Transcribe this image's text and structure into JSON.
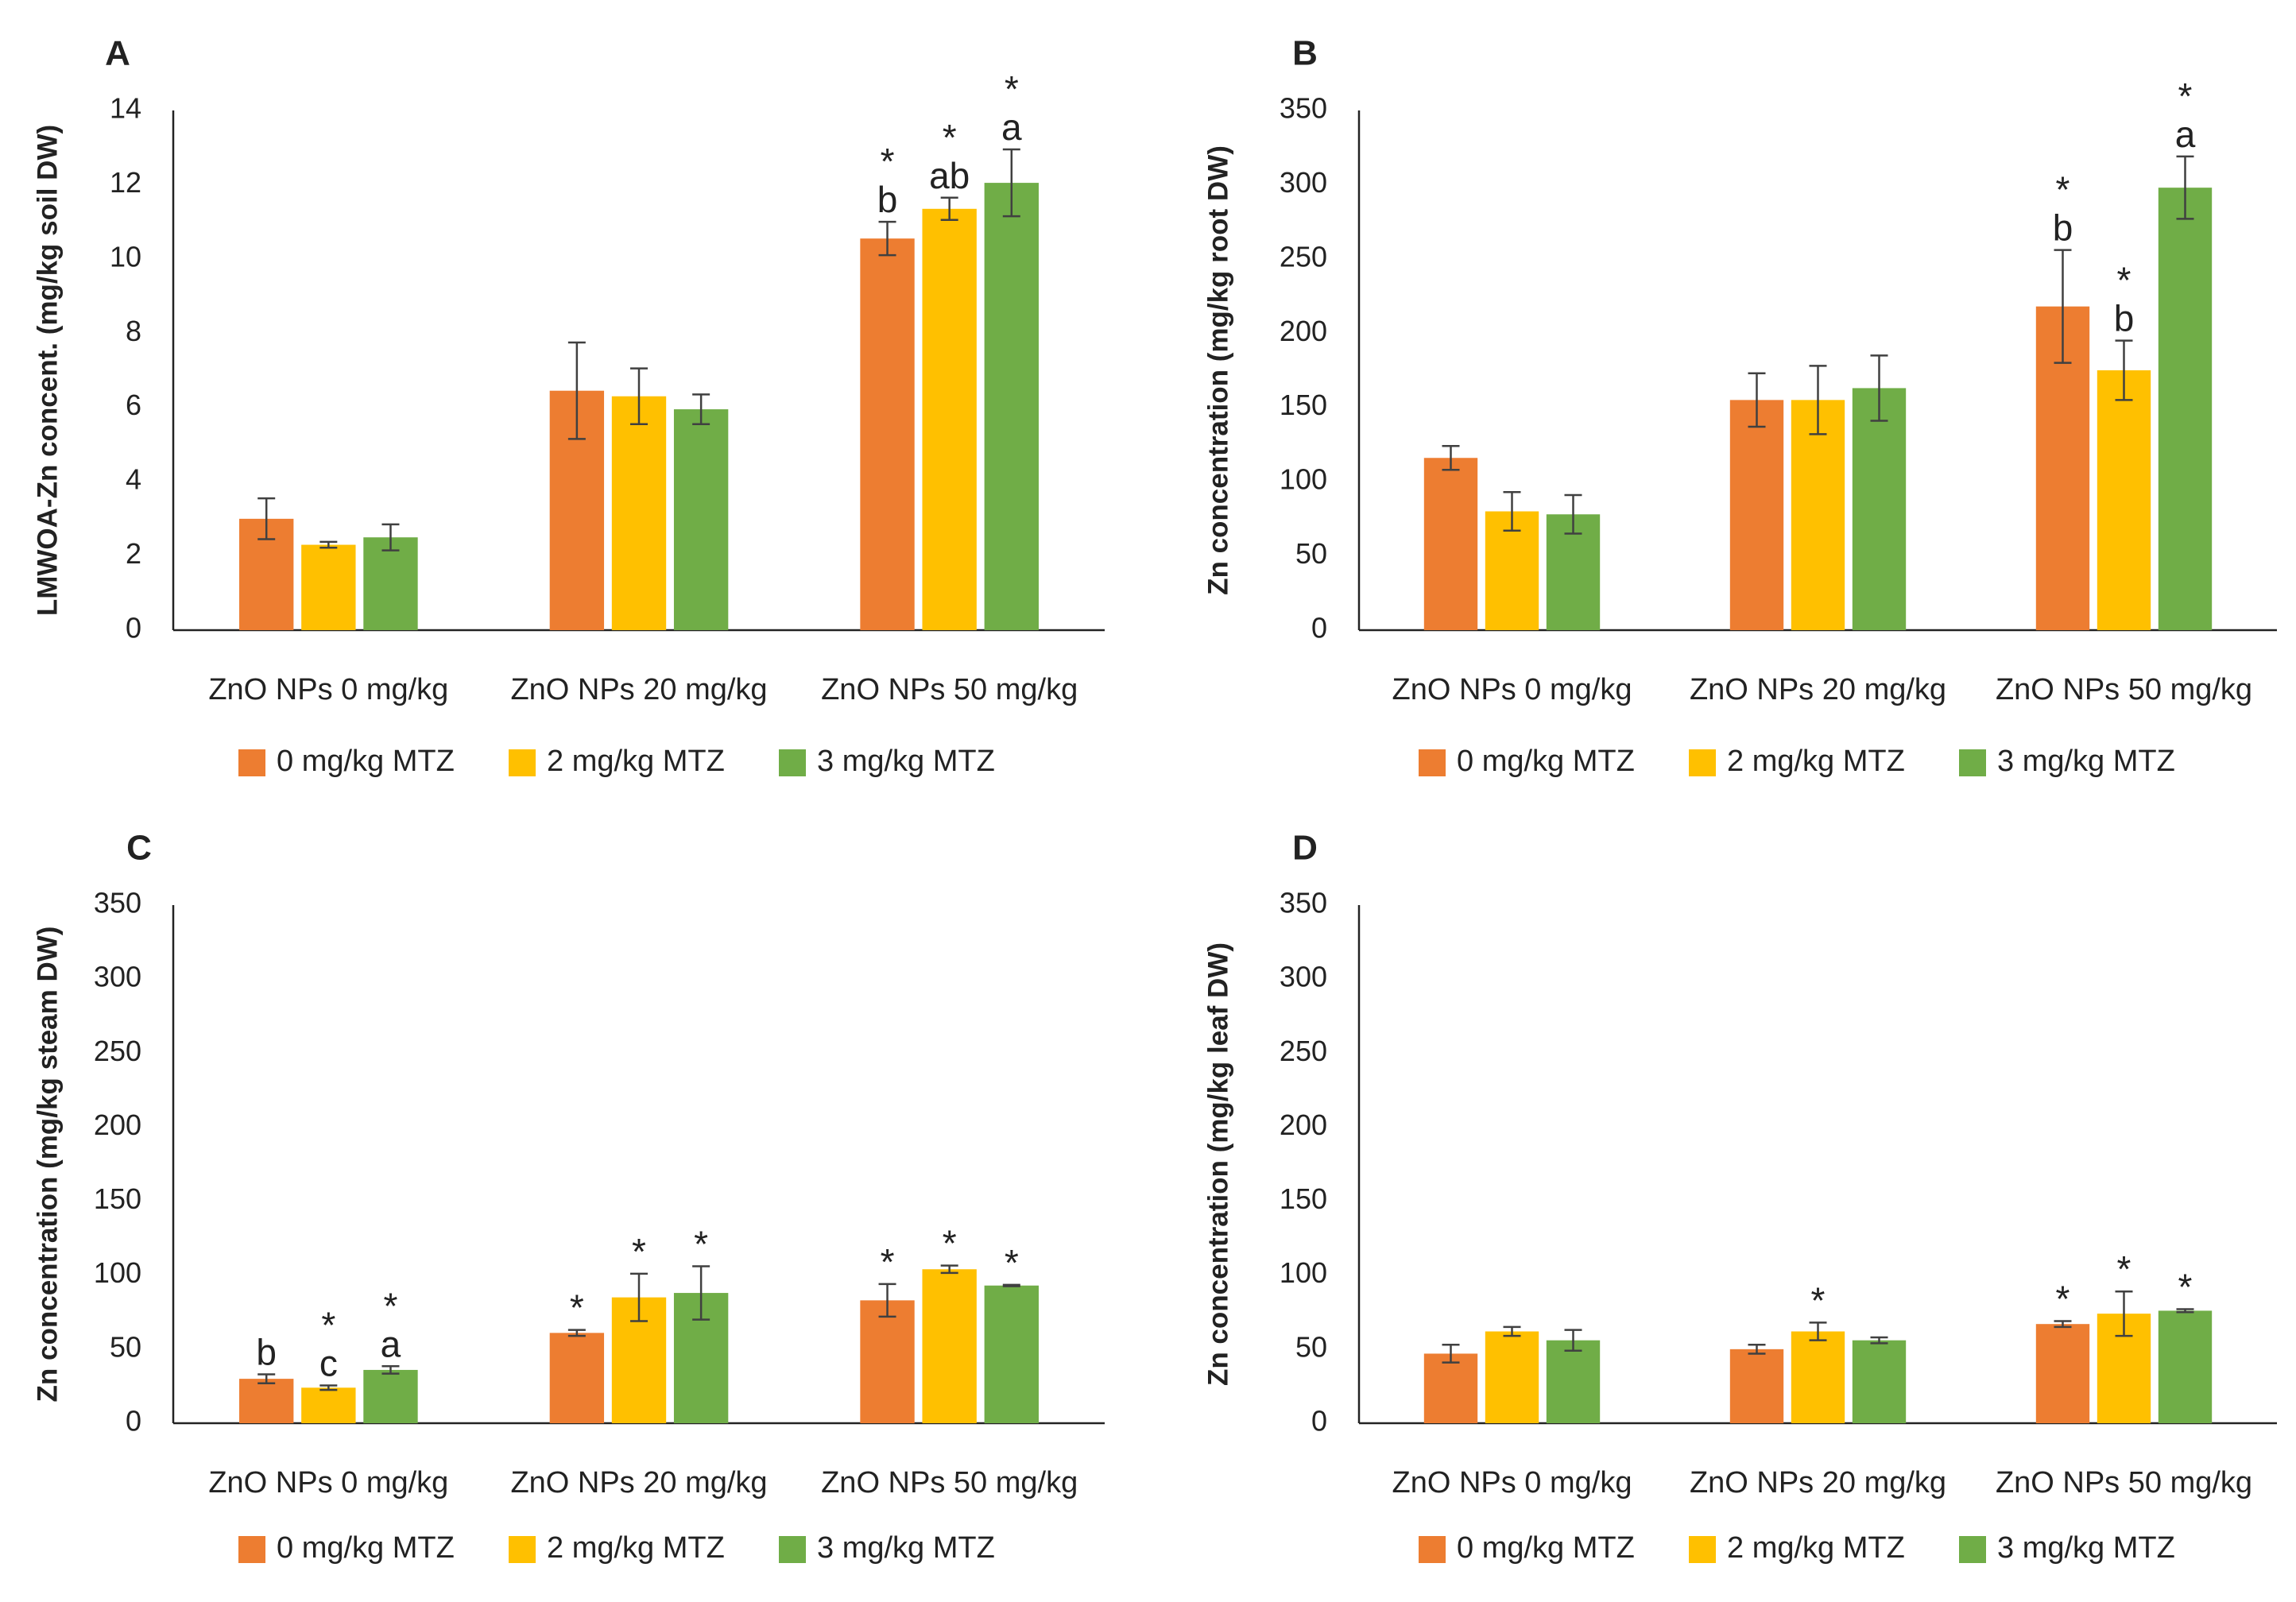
{
  "figure": {
    "legend": [
      {
        "label": "0 mg/kg MTZ",
        "color": "#ED7D31"
      },
      {
        "label": "2 mg/kg MTZ",
        "color": "#FFC000"
      },
      {
        "label": "3 mg/kg MTZ",
        "color": "#70AD47"
      }
    ]
  },
  "chart_data": [
    {
      "panel": "A",
      "type": "bar",
      "ylabel": "LMWOA-Zn concent. (mg/kg soil DW)",
      "ylim": [
        0,
        14
      ],
      "yticks": [
        0,
        2,
        4,
        6,
        8,
        10,
        12,
        14
      ],
      "categories": [
        "ZnO NPs 0 mg/kg",
        "ZnO NPs 20 mg/kg",
        "ZnO NPs 50 mg/kg"
      ],
      "series": [
        {
          "name": "0 mg/kg MTZ",
          "values": [
            3.0,
            6.45,
            10.55
          ],
          "errors": [
            0.55,
            1.3,
            0.45
          ],
          "annotations": [
            "",
            "",
            "*\nb"
          ]
        },
        {
          "name": "2 mg/kg MTZ",
          "values": [
            2.3,
            6.3,
            11.35
          ],
          "errors": [
            0.08,
            0.75,
            0.3
          ],
          "annotations": [
            "",
            "",
            "*\nab"
          ]
        },
        {
          "name": "3 mg/kg MTZ",
          "values": [
            2.5,
            5.95,
            12.05
          ],
          "errors": [
            0.35,
            0.4,
            0.9
          ],
          "annotations": [
            "",
            "",
            "*\na"
          ]
        }
      ],
      "legend_position": "bottom"
    },
    {
      "panel": "B",
      "type": "bar",
      "ylabel": "Zn concentration (mg/kg root DW)",
      "ylim": [
        0,
        350
      ],
      "yticks": [
        0,
        50,
        100,
        150,
        200,
        250,
        300,
        350
      ],
      "categories": [
        "ZnO NPs 0 mg/kg",
        "ZnO NPs 20 mg/kg",
        "ZnO NPs 50 mg/kg"
      ],
      "series": [
        {
          "name": "0 mg/kg MTZ",
          "values": [
            116,
            155,
            218
          ],
          "errors": [
            8,
            18,
            38
          ],
          "annotations": [
            "",
            "",
            "*\nb"
          ]
        },
        {
          "name": "2 mg/kg MTZ",
          "values": [
            80,
            155,
            175
          ],
          "errors": [
            13,
            23,
            20
          ],
          "annotations": [
            "",
            "",
            "*\nb"
          ]
        },
        {
          "name": "3 mg/kg MTZ",
          "values": [
            78,
            163,
            298
          ],
          "errors": [
            13,
            22,
            21
          ],
          "annotations": [
            "",
            "",
            "*\na"
          ]
        }
      ],
      "legend_position": "bottom"
    },
    {
      "panel": "C",
      "type": "bar",
      "ylabel": "Zn concentration (mg/kg steam DW)",
      "ylim": [
        0,
        350
      ],
      "yticks": [
        0,
        50,
        100,
        150,
        200,
        250,
        300,
        350
      ],
      "categories": [
        "ZnO NPs 0 mg/kg",
        "ZnO NPs 20 mg/kg",
        "ZnO NPs 50 mg/kg"
      ],
      "series": [
        {
          "name": "0 mg/kg MTZ",
          "values": [
            30,
            61,
            83
          ],
          "errors": [
            3,
            2,
            11
          ],
          "annotations": [
            "b",
            "*",
            "*"
          ]
        },
        {
          "name": "2 mg/kg MTZ",
          "values": [
            24,
            85,
            104
          ],
          "errors": [
            1.5,
            16,
            2.5
          ],
          "annotations": [
            "*\nc",
            "*",
            "*"
          ]
        },
        {
          "name": "3 mg/kg MTZ",
          "values": [
            36,
            88,
            93
          ],
          "errors": [
            2.5,
            18,
            0.5
          ],
          "annotations": [
            "*\na",
            "*",
            "*"
          ]
        }
      ],
      "legend_position": "bottom"
    },
    {
      "panel": "D",
      "type": "bar",
      "ylabel": "Zn concentration (mg/kg leaf DW)",
      "ylim": [
        0,
        350
      ],
      "yticks": [
        0,
        50,
        100,
        150,
        200,
        250,
        300,
        350
      ],
      "categories": [
        "ZnO NPs 0 mg/kg",
        "ZnO NPs 20 mg/kg",
        "ZnO NPs 50 mg/kg"
      ],
      "series": [
        {
          "name": "0 mg/kg MTZ",
          "values": [
            47,
            50,
            67
          ],
          "errors": [
            6,
            3,
            2
          ],
          "annotations": [
            "",
            "",
            "*"
          ]
        },
        {
          "name": "2 mg/kg MTZ",
          "values": [
            62,
            62,
            74
          ],
          "errors": [
            3,
            6,
            15
          ],
          "annotations": [
            "",
            "*",
            "*"
          ]
        },
        {
          "name": "3 mg/kg MTZ",
          "values": [
            56,
            56,
            76
          ],
          "errors": [
            7,
            2,
            1
          ],
          "annotations": [
            "",
            "",
            "*"
          ]
        }
      ],
      "legend_position": "bottom"
    }
  ]
}
